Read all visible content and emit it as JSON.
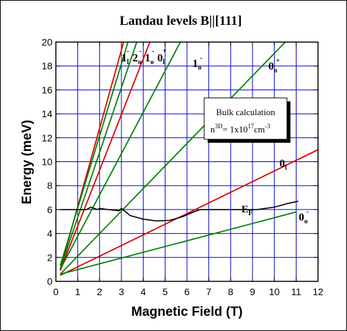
{
  "chart_data": {
    "type": "line",
    "title": "Landau levels B||[111]",
    "xlabel": "Magnetic Field (T)",
    "ylabel": "Energy (meV)",
    "xlim": [
      0,
      12
    ],
    "ylim": [
      0,
      20
    ],
    "xticks": [
      0,
      1,
      2,
      3,
      4,
      5,
      6,
      7,
      8,
      9,
      10,
      11,
      12
    ],
    "yticks": [
      0,
      2,
      4,
      6,
      8,
      10,
      12,
      14,
      16,
      18,
      20
    ],
    "grid": true,
    "series": [
      {
        "name": "1l-",
        "color": "#dd0000",
        "x": [
          0.2,
          3.1
        ],
        "y": [
          1.0,
          20.0
        ]
      },
      {
        "name": "2o-",
        "color": "#008000",
        "x": [
          0.2,
          3.3
        ],
        "y": [
          1.3,
          20.0
        ]
      },
      {
        "name": "1o-",
        "color": "#008000",
        "x": [
          0.2,
          3.7
        ],
        "y": [
          1.0,
          20.0
        ]
      },
      {
        "name": "0l+",
        "color": "#dd0000",
        "x": [
          0.2,
          4.3
        ],
        "y": [
          0.9,
          20.0
        ]
      },
      {
        "name": "1o-",
        "color": "#008000",
        "x": [
          0.2,
          5.7
        ],
        "y": [
          1.0,
          20.0
        ]
      },
      {
        "name": "0o+",
        "color": "#008000",
        "x": [
          0.2,
          10.5
        ],
        "y": [
          0.6,
          20.0
        ]
      },
      {
        "name": "0l",
        "color": "#dd0000",
        "x": [
          0.2,
          12.0
        ],
        "y": [
          0.5,
          11.0
        ]
      },
      {
        "name": "0o-",
        "color": "#008000",
        "x": [
          0.2,
          11.0
        ],
        "y": [
          0.6,
          5.8
        ]
      },
      {
        "name": "EF",
        "color": "#000000",
        "x": [
          0.2,
          0.8,
          1.4,
          1.6,
          1.9,
          2.0,
          2.4,
          2.9,
          3.0,
          3.4,
          4.0,
          4.6,
          5.2,
          5.8,
          6.3,
          6.6,
          7.0,
          7.6,
          8.0,
          8.6,
          9.2,
          10.0,
          10.6,
          11.1
        ],
        "y": [
          6.0,
          6.0,
          6.0,
          6.2,
          6.0,
          6.1,
          6.0,
          5.9,
          6.1,
          5.5,
          5.2,
          5.05,
          5.1,
          5.4,
          5.8,
          6.0,
          6.0,
          6.0,
          6.0,
          6.0,
          6.0,
          6.2,
          6.5,
          6.7
        ]
      }
    ],
    "annotations": {
      "box_line1": "Bulk calculation",
      "box_line2_prefix": "n",
      "box_line2_sup1": "3D",
      "box_line2_mid": "= 1x10",
      "box_line2_sup2": "17",
      "box_line2_unit": "cm",
      "box_line2_sup3": "-3",
      "top_label_1": "1",
      "top_label_1_sub": "l",
      "top_label_1_sup": "-",
      "top_label_2": "2",
      "top_label_2_sub": "o",
      "top_label_2_sup": "-",
      "top_label_3": "1",
      "top_label_3_sub": "o",
      "top_label_3_sup": "-",
      "top_label_4": "0",
      "top_label_4_sub": "l",
      "top_label_4_sup": "+",
      "label_1o_main": "1",
      "label_1o_sub": "o",
      "label_1o_sup": "-",
      "label_0o_plus_main": "0",
      "label_0o_plus_sub": "o",
      "label_0o_plus_sup": "+",
      "label_0l_main": "0",
      "label_0l_sub": "l",
      "label_ef_main": "E",
      "label_ef_sub": "F",
      "label_0o_minus_main": "0",
      "label_0o_minus_sub": "o",
      "label_0o_minus_sup": "-"
    }
  }
}
